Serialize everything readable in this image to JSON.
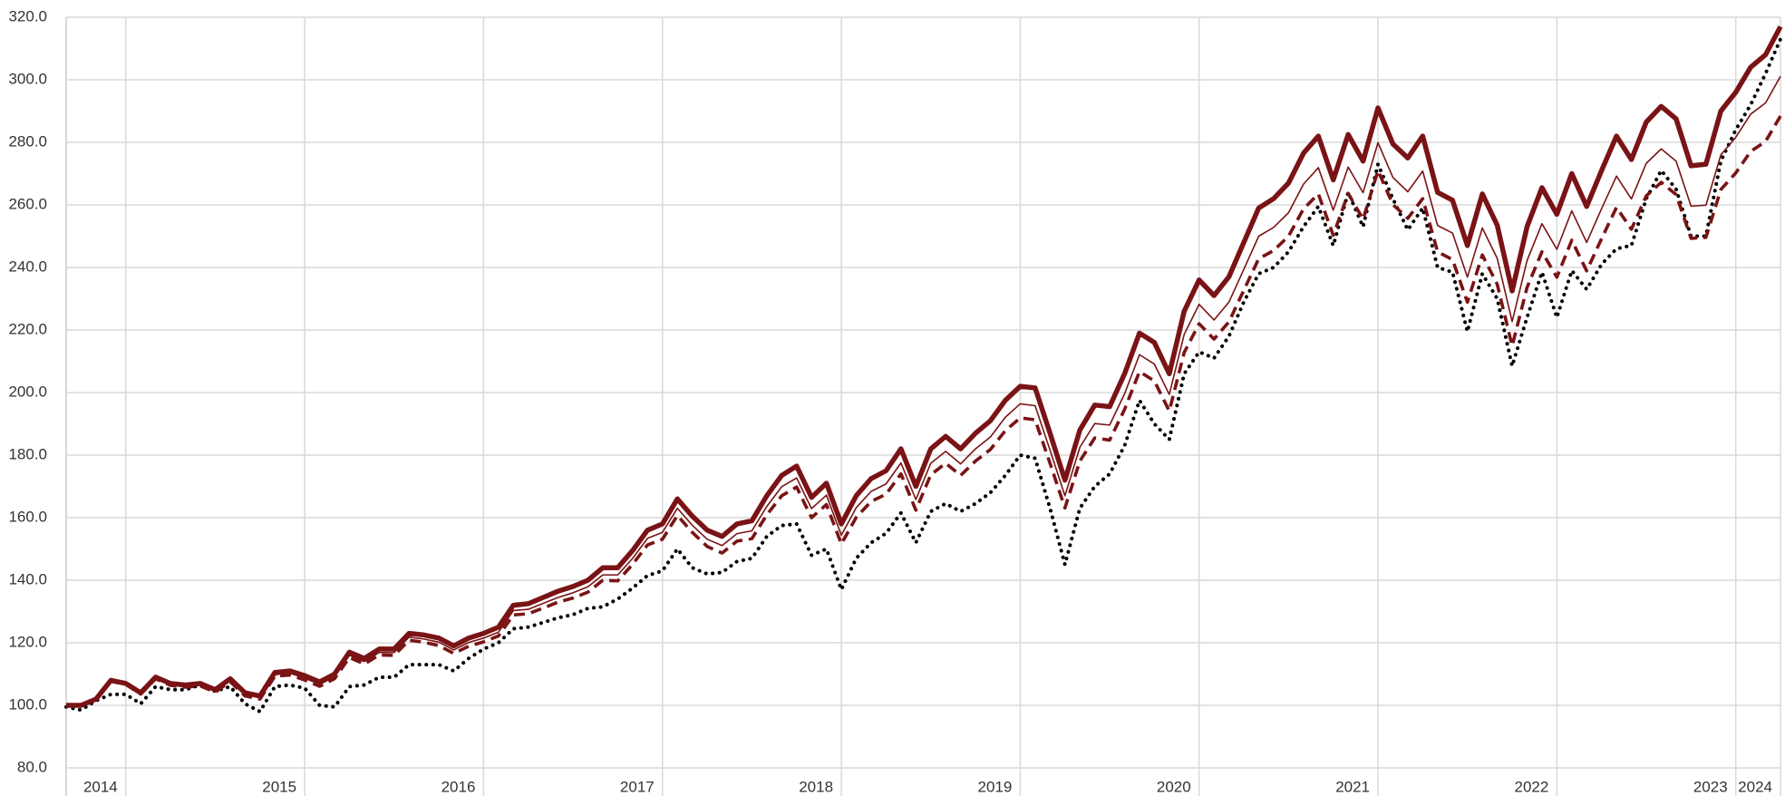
{
  "chart_data": {
    "type": "line",
    "xlim": [
      0,
      115
    ],
    "xticks": [
      {
        "value": 4,
        "label": "2014"
      },
      {
        "value": 16,
        "label": "2015"
      },
      {
        "value": 28,
        "label": "2016"
      },
      {
        "value": 40,
        "label": "2017"
      },
      {
        "value": 52,
        "label": "2018"
      },
      {
        "value": 64,
        "label": "2019"
      },
      {
        "value": 76,
        "label": "2020"
      },
      {
        "value": 88,
        "label": "2021"
      },
      {
        "value": 100,
        "label": "2022"
      },
      {
        "value": 112,
        "label": "2023"
      },
      {
        "value": 115,
        "label": "2024"
      }
    ],
    "ylim": [
      80,
      320
    ],
    "yticks": [
      {
        "value": 80,
        "label": "80.0"
      },
      {
        "value": 100,
        "label": "100.0"
      },
      {
        "value": 120,
        "label": "120.0"
      },
      {
        "value": 140,
        "label": "140.0"
      },
      {
        "value": 160,
        "label": "160.0"
      },
      {
        "value": 180,
        "label": "180.0"
      },
      {
        "value": 200,
        "label": "200.0"
      },
      {
        "value": 220,
        "label": "220.0"
      },
      {
        "value": 240,
        "label": "240.0"
      },
      {
        "value": 260,
        "label": "260.0"
      },
      {
        "value": 280,
        "label": "280.0"
      },
      {
        "value": 300,
        "label": "300.0"
      },
      {
        "value": 320,
        "label": "320.0"
      }
    ],
    "grid": true,
    "series": [
      {
        "color": "#000000",
        "line_style": "dotted",
        "values": [
          99.5,
          98.5,
          101.5,
          103.5,
          103.5,
          100.5,
          106,
          105,
          105,
          106.5,
          104.5,
          106,
          100.5,
          98,
          106,
          106.5,
          105.5,
          100,
          99.5,
          106,
          106.5,
          109,
          109,
          113,
          113,
          113,
          111,
          115,
          118,
          120,
          124.5,
          125,
          126.5,
          128,
          129,
          131,
          131.5,
          134,
          137.5,
          141.5,
          143,
          150,
          144,
          142,
          142.5,
          146,
          147,
          154,
          157.5,
          158,
          148,
          150,
          137,
          147,
          152,
          155,
          161.5,
          152,
          162,
          164.5,
          162,
          164.5,
          168,
          173.5,
          180,
          179,
          163,
          145,
          163,
          170,
          174,
          183,
          197.5,
          190,
          185,
          206,
          213,
          211,
          218,
          229,
          238,
          240,
          245,
          253,
          259.5,
          247,
          264,
          253,
          273,
          262,
          252,
          259,
          240,
          238.5,
          219.5,
          238,
          230,
          208.5,
          224,
          238.5,
          224,
          239,
          233,
          241,
          246,
          247,
          262,
          271,
          265,
          250,
          250,
          274,
          284,
          292,
          302,
          313
        ]
      },
      {
        "color": "#7a1315",
        "line_style": "dashed",
        "values": [
          100,
          99.9,
          101.8,
          107.7,
          106.7,
          103.6,
          108.5,
          106.4,
          105.8,
          106.2,
          104.2,
          107.6,
          103,
          102,
          109.3,
          109.7,
          108.1,
          106.1,
          108.5,
          115.3,
          113.2,
          116.1,
          116,
          120.8,
          120.2,
          119.1,
          116.6,
          118.9,
          120.3,
          122.2,
          128.9,
          129.3,
          131.1,
          133,
          134.3,
          136.2,
          140,
          139.8,
          145.1,
          151.3,
          153.1,
          160.7,
          155.3,
          150.8,
          148.7,
          152.5,
          153.3,
          160.9,
          167,
          169.8,
          160,
          164.2,
          151.6,
          160.1,
          165.2,
          167.5,
          174,
          162.4,
          173.7,
          177.4,
          173.5,
          178.1,
          181.8,
          187.8,
          191.9,
          191.3,
          177.4,
          163.1,
          178.1,
          185.5,
          184.8,
          194.6,
          206.7,
          203.7,
          194.1,
          212.8,
          222,
          217.1,
          222.6,
          232.7,
          242.8,
          245.4,
          250,
          258.7,
          263.5,
          250.3,
          263.7,
          255.4,
          271,
          260.1,
          255.7,
          262,
          245,
          242.5,
          228.9,
          244,
          234.6,
          214.9,
          233.6,
          245,
          236.9,
          248.7,
          238.9,
          249.2,
          259.2,
          252.2,
          262.9,
          267.2,
          263.3,
          249.3,
          249.6,
          264.9,
          270.2,
          277.1,
          280.3,
          288.4
        ]
      },
      {
        "color": "#7a1315",
        "line_style": "thin",
        "values": [
          100,
          100,
          101.9,
          107.9,
          106.8,
          103.8,
          108.7,
          106.7,
          106.1,
          106.6,
          104.5,
          108,
          103.5,
          102.4,
          109.8,
          110.3,
          108.7,
          106.7,
          109.1,
          116,
          114,
          116.9,
          116.9,
          121.8,
          121.2,
          120.2,
          117.7,
          120.1,
          121.5,
          123.4,
          130.3,
          130.7,
          132.6,
          134.5,
          136,
          137.9,
          141.7,
          141.7,
          147,
          153.4,
          155.3,
          163,
          157.6,
          153.1,
          151.1,
          154.9,
          155.8,
          163.6,
          169.9,
          172.7,
          162.9,
          167.2,
          154.4,
          163.2,
          168.4,
          170.8,
          177.5,
          165.8,
          177.4,
          181.2,
          177.2,
          182,
          185.8,
          192.1,
          196.4,
          195.8,
          181.6,
          167,
          182.5,
          190.1,
          189.6,
          199.6,
          212.1,
          209.1,
          199.4,
          218.6,
          228.2,
          223.2,
          228.9,
          239.4,
          250,
          252.8,
          257.5,
          266.6,
          271.9,
          258.3,
          272.1,
          263.9,
          279.9,
          268.8,
          264.2,
          270.8,
          253.4,
          251,
          236.9,
          252.6,
          242.9,
          222.7,
          242.2,
          254,
          245.8,
          258.1,
          248,
          258.8,
          269.2,
          261.9,
          273.3,
          277.9,
          274,
          259.6,
          259.9,
          276,
          281.6,
          289,
          292.6,
          301.1
        ]
      },
      {
        "color": "#7a1315",
        "line_style": "thick",
        "values": [
          100,
          100,
          102,
          108,
          107,
          104,
          109,
          107,
          106.5,
          107,
          105,
          108.5,
          104,
          103,
          110.5,
          111,
          109.5,
          107.5,
          110,
          117,
          115,
          118,
          118,
          123,
          122.5,
          121.5,
          119,
          121.5,
          123,
          125,
          132,
          132.5,
          134.5,
          136.5,
          138,
          140,
          144,
          144,
          149.5,
          156,
          158,
          166,
          160.5,
          156,
          154,
          158,
          159,
          167,
          173.5,
          176.5,
          166.5,
          171,
          158,
          167,
          172.5,
          175,
          182,
          170,
          182,
          186,
          182,
          187,
          191,
          197.5,
          202,
          201.5,
          187,
          172,
          188,
          196,
          195.5,
          206,
          219,
          216,
          206,
          226,
          236,
          231,
          237,
          248,
          259,
          262,
          267,
          276.5,
          282,
          268,
          282.5,
          274,
          291,
          279.5,
          275,
          282,
          264,
          261.5,
          247,
          263.5,
          253.5,
          232.5,
          253,
          265.5,
          257,
          270,
          259.5,
          271,
          282,
          274.5,
          286.5,
          291.5,
          287.5,
          272.5,
          273,
          290,
          296,
          304,
          308,
          317
        ]
      }
    ]
  }
}
